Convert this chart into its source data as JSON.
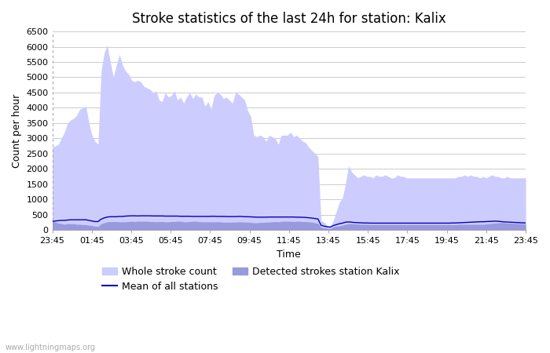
{
  "title": "Stroke statistics of the last 24h for station: Kalix",
  "xlabel": "Time",
  "ylabel": "Count per hour",
  "x_labels": [
    "23:45",
    "01:45",
    "03:45",
    "05:45",
    "07:45",
    "09:45",
    "11:45",
    "13:45",
    "15:45",
    "17:45",
    "19:45",
    "21:45",
    "23:45"
  ],
  "ylim": [
    0,
    6500
  ],
  "yticks": [
    0,
    500,
    1000,
    1500,
    2000,
    2500,
    3000,
    3500,
    4000,
    4500,
    5000,
    5500,
    6000,
    6500
  ],
  "whole_stroke": [
    2700,
    2750,
    2800,
    3000,
    3200,
    3500,
    3600,
    3650,
    3750,
    3950,
    4000,
    4050,
    3500,
    3100,
    2900,
    2800,
    5200,
    5800,
    6050,
    5500,
    5000,
    5400,
    5750,
    5400,
    5200,
    5100,
    4900,
    4850,
    4900,
    4850,
    4700,
    4650,
    4600,
    4500,
    4550,
    4250,
    4200,
    4500,
    4350,
    4400,
    4550,
    4250,
    4350,
    4150,
    4350,
    4500,
    4300,
    4450,
    4350,
    4350,
    4050,
    4200,
    3950,
    4400,
    4500,
    4450,
    4300,
    4350,
    4250,
    4150,
    4500,
    4450,
    4350,
    4250,
    3900,
    3700,
    3100,
    3050,
    3100,
    3050,
    2900,
    3100,
    3050,
    3000,
    2800,
    3100,
    3100,
    3100,
    3200,
    3050,
    3100,
    3000,
    2900,
    2850,
    2700,
    2600,
    2500,
    2400,
    300,
    250,
    150,
    100,
    300,
    600,
    900,
    1050,
    1500,
    2100,
    1900,
    1800,
    1700,
    1750,
    1800,
    1750,
    1750,
    1700,
    1800,
    1750,
    1750,
    1800,
    1750,
    1700,
    1700,
    1800,
    1750,
    1750,
    1700,
    1700,
    1700,
    1700,
    1700,
    1700,
    1700,
    1700,
    1700,
    1700,
    1700,
    1700,
    1700,
    1700,
    1700,
    1700,
    1700,
    1750,
    1750,
    1800,
    1750,
    1800,
    1750,
    1750,
    1700,
    1750,
    1700,
    1750,
    1800,
    1750,
    1750,
    1700,
    1700,
    1750,
    1700,
    1700,
    1700,
    1700,
    1700,
    1700
  ],
  "detected_strokes": [
    300,
    250,
    220,
    200,
    180,
    200,
    200,
    200,
    180,
    180,
    170,
    170,
    150,
    140,
    120,
    110,
    200,
    230,
    260,
    270,
    270,
    270,
    260,
    260,
    260,
    270,
    280,
    270,
    280,
    280,
    280,
    280,
    270,
    270,
    260,
    270,
    270,
    260,
    260,
    270,
    270,
    280,
    280,
    260,
    260,
    270,
    280,
    280,
    270,
    260,
    260,
    260,
    260,
    260,
    260,
    260,
    250,
    250,
    250,
    250,
    250,
    260,
    260,
    250,
    250,
    240,
    230,
    230,
    240,
    240,
    250,
    250,
    260,
    270,
    260,
    280,
    280,
    280,
    280,
    270,
    280,
    280,
    270,
    270,
    260,
    250,
    230,
    210,
    80,
    60,
    50,
    40,
    100,
    120,
    130,
    150,
    180,
    200,
    200,
    190,
    190,
    180,
    180,
    180,
    170,
    170,
    170,
    170,
    170,
    170,
    170,
    170,
    170,
    170,
    170,
    170,
    170,
    170,
    170,
    170,
    170,
    170,
    170,
    170,
    170,
    170,
    170,
    170,
    170,
    170,
    170,
    170,
    170,
    180,
    180,
    180,
    180,
    180,
    180,
    180,
    180,
    180,
    190,
    200,
    210,
    220,
    230,
    240,
    230,
    220,
    220,
    210,
    210,
    200,
    200,
    190
  ],
  "mean_all": [
    280,
    290,
    300,
    310,
    310,
    320,
    330,
    330,
    330,
    330,
    330,
    330,
    310,
    290,
    270,
    270,
    350,
    390,
    420,
    430,
    430,
    430,
    440,
    440,
    450,
    455,
    460,
    460,
    455,
    460,
    460,
    460,
    460,
    455,
    455,
    455,
    455,
    450,
    450,
    450,
    450,
    450,
    445,
    445,
    445,
    445,
    440,
    440,
    440,
    440,
    440,
    440,
    445,
    445,
    440,
    440,
    440,
    435,
    435,
    435,
    435,
    440,
    440,
    430,
    430,
    425,
    420,
    415,
    415,
    415,
    415,
    420,
    420,
    420,
    420,
    420,
    420,
    420,
    420,
    420,
    415,
    415,
    410,
    405,
    395,
    385,
    370,
    355,
    150,
    120,
    100,
    90,
    140,
    170,
    200,
    220,
    250,
    260,
    250,
    240,
    235,
    230,
    225,
    225,
    220,
    220,
    220,
    220,
    220,
    220,
    220,
    220,
    220,
    220,
    220,
    220,
    220,
    220,
    220,
    220,
    220,
    220,
    220,
    220,
    220,
    220,
    220,
    220,
    220,
    220,
    220,
    225,
    225,
    230,
    235,
    240,
    245,
    250,
    255,
    260,
    265,
    265,
    270,
    275,
    280,
    285,
    280,
    270,
    260,
    255,
    250,
    245,
    240,
    235,
    230,
    225
  ],
  "whole_stroke_color": "#ccccff",
  "detected_stroke_color": "#9999dd",
  "mean_line_color": "#0000bb",
  "background_color": "#ffffff",
  "grid_color": "#cccccc",
  "watermark": "www.lightningmaps.org",
  "legend_whole": "Whole stroke count",
  "legend_detected": "Detected strokes station Kalix",
  "legend_mean": "Mean of all stations",
  "title_fontsize": 12,
  "label_fontsize": 9,
  "tick_fontsize": 8,
  "figwidth": 7.0,
  "figheight": 4.5,
  "dpi": 100
}
